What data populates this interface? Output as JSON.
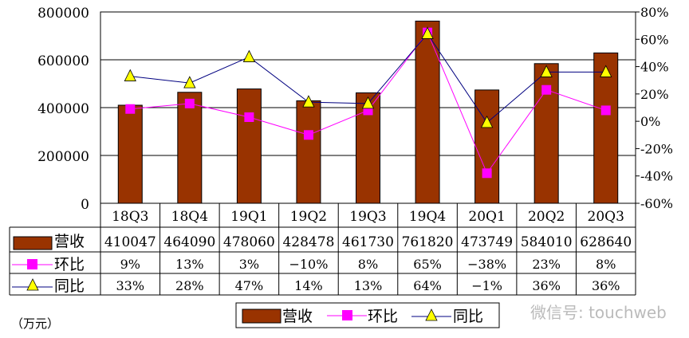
{
  "chart_data": {
    "type": "bar+line",
    "categories": [
      "18Q3",
      "18Q4",
      "19Q1",
      "19Q2",
      "19Q3",
      "19Q4",
      "20Q1",
      "20Q2",
      "20Q3"
    ],
    "series": [
      {
        "name": "营收",
        "type": "bar",
        "axis": "left",
        "color": "#993300",
        "values": [
          410047,
          464090,
          478060,
          428478,
          461730,
          761820,
          473749,
          584010,
          628640
        ]
      },
      {
        "name": "环比",
        "type": "line",
        "axis": "right",
        "color": "#FF00FF",
        "marker": "square",
        "values": [
          9,
          13,
          3,
          -10,
          8,
          65,
          -38,
          23,
          8
        ],
        "labels": [
          "9%",
          "13%",
          "3%",
          "−10%",
          "8%",
          "65%",
          "−38%",
          "23%",
          "8%"
        ]
      },
      {
        "name": "同比",
        "type": "line",
        "axis": "right",
        "color": "#000080",
        "marker": "triangle",
        "marker_color": "#FFFF00",
        "values": [
          33,
          28,
          47,
          14,
          13,
          64,
          -1,
          36,
          36
        ],
        "labels": [
          "33%",
          "28%",
          "47%",
          "14%",
          "13%",
          "64%",
          "−1%",
          "36%",
          "36%"
        ]
      }
    ],
    "left_axis": {
      "ylim": [
        0,
        800000
      ],
      "ticks": [
        "0",
        "200000",
        "400000",
        "600000",
        "800000"
      ]
    },
    "right_axis": {
      "ylim": [
        -60,
        80
      ],
      "ticks": [
        "-60%",
        "-40%",
        "-20%",
        "0%",
        "20%",
        "40%",
        "60%",
        "80%"
      ]
    },
    "grid": true,
    "data_table": true,
    "legend_position": "bottom",
    "unit_label": "（万元）"
  },
  "watermark": "微信号: touchweb"
}
